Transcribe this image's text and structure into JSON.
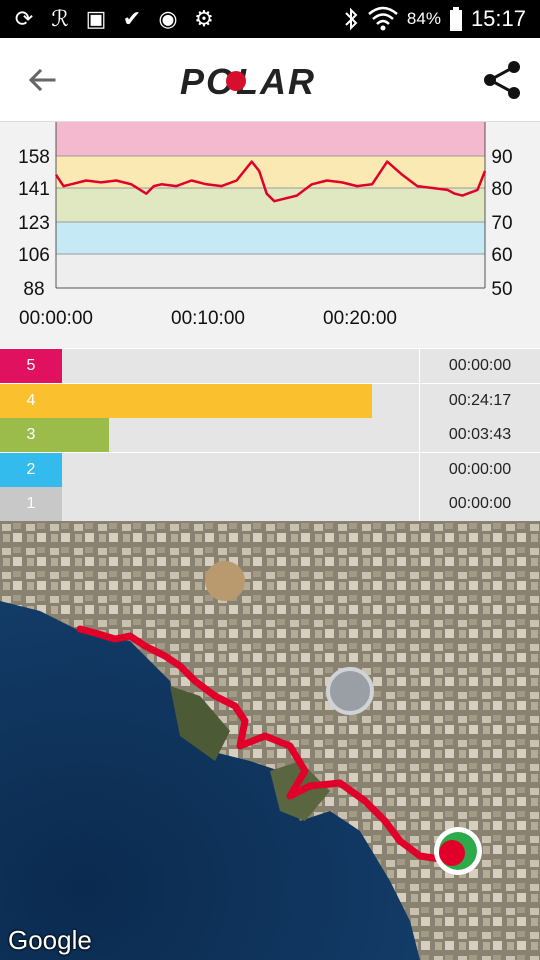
{
  "status_bar": {
    "battery_percent": "84%",
    "time": "15:17",
    "icons": [
      "sync-icon",
      "polar-flow-icon",
      "image-icon",
      "check-icon",
      "chrome-icon",
      "settings-icon",
      "bluetooth-icon",
      "wifi-icon",
      "battery-icon"
    ]
  },
  "app_bar": {
    "logo_text": "POLAR",
    "back_icon": "arrow-back-icon",
    "share_icon": "share-icon"
  },
  "chart_data": {
    "type": "line",
    "left_axis_ticks": [
      "158",
      "141",
      "123",
      "106",
      "88"
    ],
    "right_axis_ticks": [
      "90",
      "80",
      "70",
      "60",
      "50"
    ],
    "x_ticks": [
      "00:00:00",
      "00:10:00",
      "00:20:00"
    ],
    "ylim": [
      88,
      176
    ],
    "zone_bands": [
      {
        "zone": 5,
        "from": 158,
        "to": 176,
        "color": "#f4b8cf"
      },
      {
        "zone": 4,
        "from": 141,
        "to": 158,
        "color": "#fbe9b4"
      },
      {
        "zone": 3,
        "from": 123,
        "to": 141,
        "color": "#dfe8c0"
      },
      {
        "zone": 2,
        "from": 106,
        "to": 123,
        "color": "#c5e9f5"
      },
      {
        "zone": 1,
        "from": 88,
        "to": 106,
        "color": "#eeeeee"
      }
    ],
    "series": [
      {
        "color": "#e0002a",
        "x_minutes": [
          0,
          0.5,
          1,
          2,
          3,
          4,
          5,
          6,
          6.5,
          7,
          8,
          9,
          10,
          11,
          12,
          13,
          13.5,
          14,
          14.5,
          15,
          16,
          17,
          18,
          19,
          20,
          21,
          22,
          23,
          24,
          25,
          26,
          26.5,
          27,
          28,
          28.5
        ],
        "values": [
          148,
          142,
          143,
          145,
          144,
          145,
          143,
          138,
          142,
          143,
          142,
          145,
          143,
          142,
          145,
          155,
          150,
          138,
          134,
          135,
          137,
          143,
          145,
          144,
          142,
          143,
          155,
          148,
          142,
          141,
          140,
          138,
          137,
          140,
          150
        ]
      }
    ]
  },
  "zones": [
    {
      "label": "5",
      "time": "00:00:00",
      "fraction": 0.0,
      "color": "#e0115f"
    },
    {
      "label": "4",
      "time": "00:24:17",
      "fraction": 0.867,
      "color": "#fbc02d"
    },
    {
      "label": "3",
      "time": "00:03:43",
      "fraction": 0.133,
      "color": "#9bbc4a"
    },
    {
      "label": "2",
      "time": "00:00:00",
      "fraction": 0.0,
      "color": "#33bbee"
    },
    {
      "label": "1",
      "time": "00:00:00",
      "fraction": 0.0,
      "color": "#c8c8c8"
    }
  ],
  "map": {
    "attribution": "Google",
    "route_color": "#e0002a",
    "end_marker_icon": "finish-marker-icon"
  }
}
